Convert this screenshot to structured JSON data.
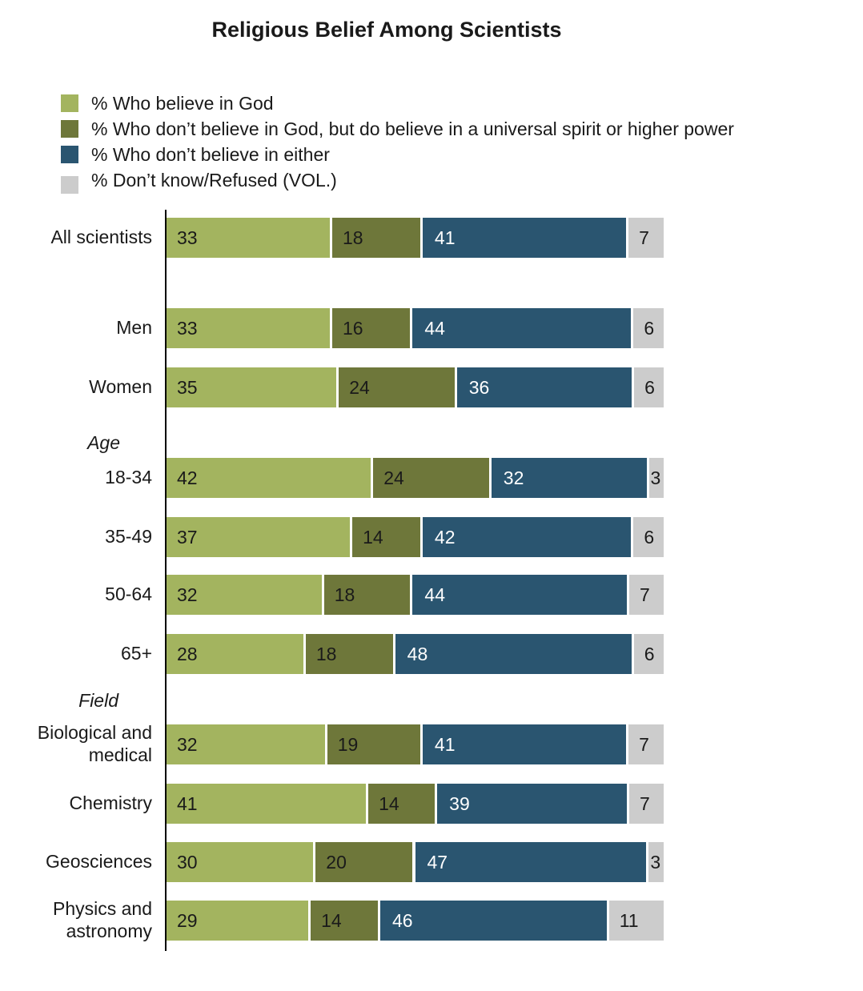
{
  "chart_data": {
    "type": "bar",
    "orientation": "horizontal",
    "stacked": true,
    "title": "Religious Belief Among Scientists",
    "xlabel": "",
    "ylabel": "",
    "xlim": [
      0,
      100
    ],
    "legend_position": "top-left",
    "series": [
      {
        "name": "% Who believe in God",
        "color": "#a3b45f",
        "label_color": "#1a1a1a",
        "values": [
          33,
          33,
          35,
          42,
          37,
          32,
          28,
          32,
          41,
          30,
          29
        ]
      },
      {
        "name": "% Who don’t believe in God, but do believe in a universal spirit or higher power",
        "color": "#6e773a",
        "label_color": "#1a1a1a",
        "values": [
          18,
          16,
          24,
          24,
          14,
          18,
          18,
          19,
          14,
          20,
          14
        ]
      },
      {
        "name": "% Who don’t believe in either",
        "color": "#2a5570",
        "label_color": "#ffffff",
        "values": [
          41,
          44,
          36,
          32,
          42,
          44,
          48,
          41,
          39,
          47,
          46
        ]
      },
      {
        "name": "% Don’t know/Refused (VOL.)",
        "color": "#cccccc",
        "label_color": "#1a1a1a",
        "values": [
          7,
          6,
          6,
          3,
          6,
          7,
          6,
          7,
          7,
          3,
          11
        ]
      }
    ],
    "categories": [
      [
        "All scientists"
      ],
      [
        "Men"
      ],
      [
        "Women"
      ],
      [
        "18-34"
      ],
      [
        "35-49"
      ],
      [
        "50-64"
      ],
      [
        "65+"
      ],
      [
        "Biological and",
        "medical"
      ],
      [
        "Chemistry"
      ],
      [
        "Geosciences"
      ],
      [
        "Physics and",
        "astronomy"
      ]
    ],
    "groups": [
      {
        "label": "Age",
        "first_category": 3
      },
      {
        "label": "Field",
        "first_category": 7
      }
    ]
  }
}
